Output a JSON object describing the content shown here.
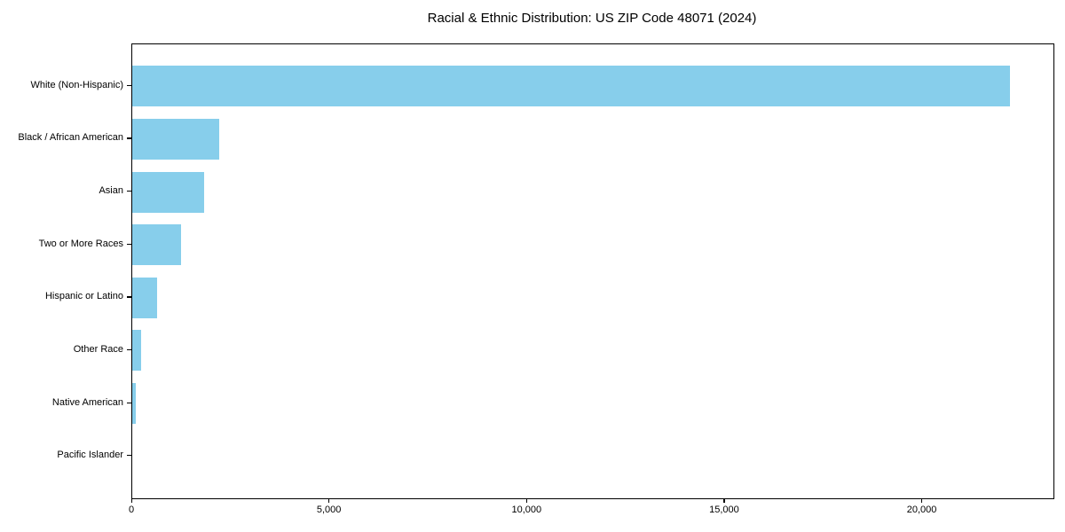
{
  "title": "Racial & Ethnic Distribution: US ZIP Code 48071 (2024)",
  "chart_data": {
    "type": "bar",
    "orientation": "horizontal",
    "title": "Racial & Ethnic Distribution: US ZIP Code 48071 (2024)",
    "categories": [
      "White (Non-Hispanic)",
      "Black / African American",
      "Asian",
      "Two or More Races",
      "Hispanic or Latino",
      "Other Race",
      "Native American",
      "Pacific Islander"
    ],
    "values": [
      22200,
      2210,
      1830,
      1230,
      620,
      235,
      80,
      0
    ],
    "xlabel": "",
    "ylabel": "",
    "xlim": [
      0,
      23310
    ],
    "x_ticks": [
      0,
      5000,
      10000,
      15000,
      20000
    ],
    "x_tick_labels": [
      "0",
      "5,000",
      "10,000",
      "15,000",
      "20,000"
    ],
    "bar_color": "#87CEEB",
    "background_color": "#FFFFFF",
    "frame_color": "#000000",
    "grid": false,
    "legend": false
  }
}
